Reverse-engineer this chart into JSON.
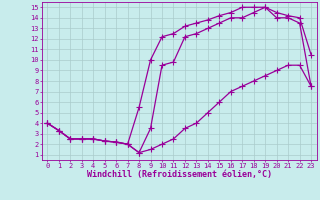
{
  "xlabel": "Windchill (Refroidissement éolien,°C)",
  "bg_color": "#c8ecec",
  "line_color": "#990099",
  "grid_color": "#aacccc",
  "xlim": [
    -0.5,
    23.5
  ],
  "ylim": [
    0.5,
    15.5
  ],
  "xticks": [
    0,
    1,
    2,
    3,
    4,
    5,
    6,
    7,
    8,
    9,
    10,
    11,
    12,
    13,
    14,
    15,
    16,
    17,
    18,
    19,
    20,
    21,
    22,
    23
  ],
  "yticks": [
    1,
    2,
    3,
    4,
    5,
    6,
    7,
    8,
    9,
    10,
    11,
    12,
    13,
    14,
    15
  ],
  "line1_x": [
    0,
    1,
    2,
    3,
    4,
    5,
    6,
    7,
    8,
    9,
    10,
    11,
    12,
    13,
    14,
    15,
    16,
    17,
    18,
    19,
    20,
    21,
    22,
    23
  ],
  "line1_y": [
    4,
    3.3,
    2.5,
    2.5,
    2.5,
    2.3,
    2.2,
    2.0,
    1.2,
    1.5,
    2.0,
    2.5,
    3.5,
    4.0,
    5.0,
    6.0,
    7.0,
    7.5,
    8.0,
    8.5,
    9.0,
    9.5,
    9.5,
    7.5
  ],
  "line2_x": [
    0,
    1,
    2,
    3,
    4,
    5,
    6,
    7,
    8,
    9,
    10,
    11,
    12,
    13,
    14,
    15,
    16,
    17,
    18,
    19,
    20,
    21,
    22,
    23
  ],
  "line2_y": [
    4,
    3.3,
    2.5,
    2.5,
    2.5,
    2.3,
    2.2,
    2.0,
    1.2,
    3.5,
    9.5,
    9.8,
    12.2,
    12.5,
    13.0,
    13.5,
    14.0,
    14.0,
    14.5,
    15.0,
    14.5,
    14.2,
    14.0,
    10.5
  ],
  "line3_x": [
    0,
    1,
    2,
    3,
    4,
    5,
    6,
    7,
    8,
    9,
    10,
    11,
    12,
    13,
    14,
    15,
    16,
    17,
    18,
    19,
    20,
    21,
    22,
    23
  ],
  "line3_y": [
    4,
    3.3,
    2.5,
    2.5,
    2.5,
    2.3,
    2.2,
    2.0,
    5.5,
    10.0,
    12.2,
    12.5,
    13.2,
    13.5,
    13.8,
    14.2,
    14.5,
    15.0,
    15.0,
    15.0,
    14.0,
    14.0,
    13.5,
    7.5
  ],
  "marker": "+",
  "markersize": 4,
  "linewidth": 0.9,
  "xlabel_fontsize": 6,
  "tick_fontsize": 5,
  "font_family": "monospace"
}
